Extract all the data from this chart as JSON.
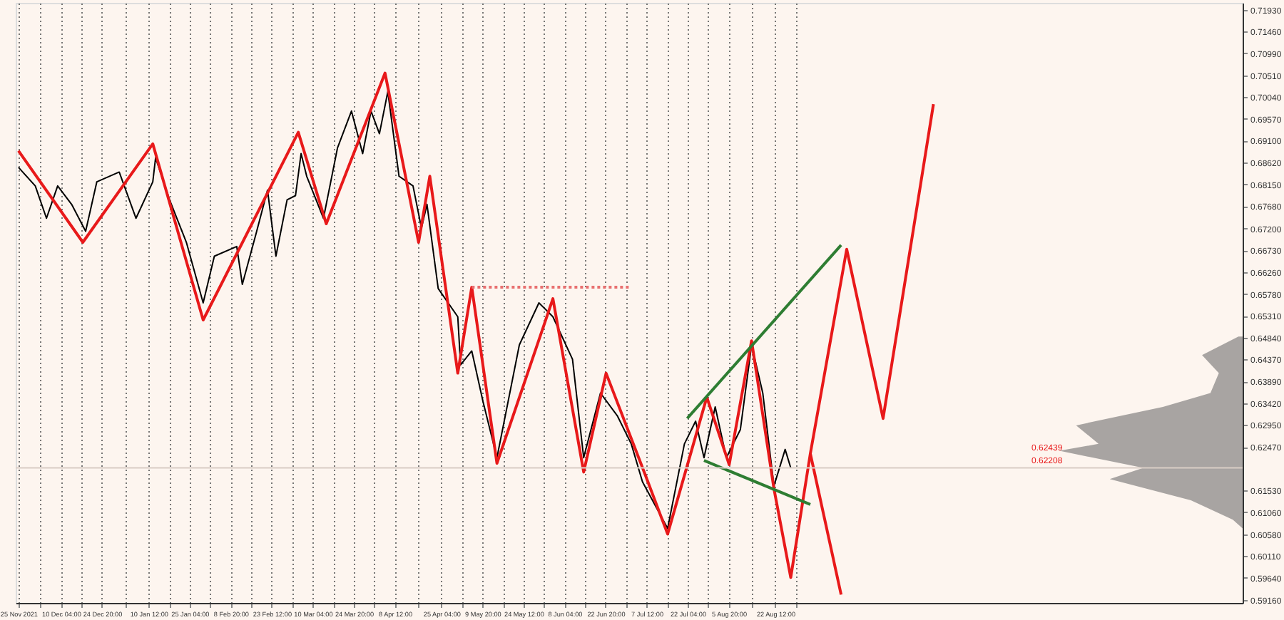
{
  "chart_data": {
    "type": "line",
    "xlim": [
      "2021-11-24",
      "2023-02-05T12:00"
    ],
    "ylim": [
      0.591,
      0.7208
    ],
    "xticks": [
      {
        "value": "2021-11-25",
        "label": "25 Nov 2021"
      },
      {
        "value": "2021-12-02T14:00",
        "label": null
      },
      {
        "value": "2021-12-10T04:00",
        "label": "10 Dec 04:00"
      },
      {
        "value": "2021-12-17T12:00",
        "label": null
      },
      {
        "value": "2021-12-24T20:00",
        "label": "24 Dec 20:00"
      },
      {
        "value": "2022-01-02T04:00",
        "label": null
      },
      {
        "value": "2022-01-10T12:00",
        "label": "10 Jan 12:00"
      },
      {
        "value": "2022-01-17T20:00",
        "label": null
      },
      {
        "value": "2022-01-25T04:00",
        "label": "25 Jan 04:00"
      },
      {
        "value": "2022-02-01T12:00",
        "label": null
      },
      {
        "value": "2022-02-08T20:00",
        "label": "8 Feb 20:00"
      },
      {
        "value": "2022-02-16T04:00",
        "label": null
      },
      {
        "value": "2022-02-23T12:00",
        "label": "23 Feb 12:00"
      },
      {
        "value": "2022-03-02T20:00",
        "label": null
      },
      {
        "value": "2022-03-10T04:00",
        "label": "10 Mar 04:00"
      },
      {
        "value": "2022-03-17T12:00",
        "label": null
      },
      {
        "value": "2022-03-24T20:00",
        "label": "24 Mar 20:00"
      },
      {
        "value": "2022-04-01T04:00",
        "label": null
      },
      {
        "value": "2022-04-08T12:00",
        "label": "8 Apr 12:00"
      },
      {
        "value": "2022-04-16T20:00",
        "label": null
      },
      {
        "value": "2022-04-25T04:00",
        "label": "25 Apr 04:00"
      },
      {
        "value": "2022-05-02T12:00",
        "label": null
      },
      {
        "value": "2022-05-09T20:00",
        "label": "9 May 20:00"
      },
      {
        "value": "2022-05-17T04:00",
        "label": null
      },
      {
        "value": "2022-05-24T12:00",
        "label": "24 May 12:00"
      },
      {
        "value": "2022-05-31T20:00",
        "label": null
      },
      {
        "value": "2022-06-08T04:00",
        "label": "8 Jun 04:00"
      },
      {
        "value": "2022-06-15T12:00",
        "label": null
      },
      {
        "value": "2022-06-22T20:00",
        "label": "22 Jun 20:00"
      },
      {
        "value": "2022-06-30T04:00",
        "label": null
      },
      {
        "value": "2022-07-07T12:00",
        "label": "7 Jul 12:00"
      },
      {
        "value": "2022-07-14T20:00",
        "label": null
      },
      {
        "value": "2022-07-22T04:00",
        "label": "22 Jul 04:00"
      },
      {
        "value": "2022-07-29T12:00",
        "label": null
      },
      {
        "value": "2022-08-05T20:00",
        "label": "5 Aug 20:00"
      },
      {
        "value": "2022-08-14T04:00",
        "label": null
      },
      {
        "value": "2022-08-22T12:00",
        "label": "22 Aug 12:00"
      },
      {
        "value": "2022-08-30",
        "label": null
      }
    ],
    "yticks": [
      {
        "value": 0.7193,
        "label": "0.71930"
      },
      {
        "value": 0.7146,
        "label": "0.71460"
      },
      {
        "value": 0.7099,
        "label": "0.70990"
      },
      {
        "value": 0.7051,
        "label": "0.70510"
      },
      {
        "value": 0.7004,
        "label": "0.70040"
      },
      {
        "value": 0.6957,
        "label": "0.69570"
      },
      {
        "value": 0.691,
        "label": "0.69100"
      },
      {
        "value": 0.6862,
        "label": "0.68620"
      },
      {
        "value": 0.6815,
        "label": "0.68150"
      },
      {
        "value": 0.6768,
        "label": "0.67680"
      },
      {
        "value": 0.672,
        "label": "0.67200"
      },
      {
        "value": 0.6673,
        "label": "0.66730"
      },
      {
        "value": 0.6626,
        "label": "0.66260"
      },
      {
        "value": 0.6578,
        "label": "0.65780"
      },
      {
        "value": 0.6531,
        "label": "0.65310"
      },
      {
        "value": 0.6484,
        "label": "0.64840"
      },
      {
        "value": 0.6437,
        "label": "0.64370"
      },
      {
        "value": 0.6389,
        "label": "0.63890"
      },
      {
        "value": 0.6342,
        "label": "0.63420"
      },
      {
        "value": 0.6295,
        "label": "0.62950"
      },
      {
        "value": 0.6247,
        "label": "0.62470"
      },
      {
        "value": 0.6153,
        "label": "0.61530"
      },
      {
        "value": 0.6106,
        "label": "0.61060"
      },
      {
        "value": 0.6058,
        "label": "0.60580"
      },
      {
        "value": 0.6011,
        "label": "0.60110"
      },
      {
        "value": 0.5964,
        "label": "0.59640"
      },
      {
        "value": 0.5916,
        "label": "0.59160"
      }
    ],
    "grid": "x",
    "series": [
      {
        "type": "area",
        "color": "#a8a4a2",
        "x": [
          "2023-02-05T12:00",
          "2023-02-04",
          "2023-01-22",
          "2023-01-28",
          "2023-01-25",
          "2023-01-08",
          "2022-12-08",
          "2022-12-16",
          "2022-12-02",
          "2023-01-01",
          "2022-12-20",
          "2023-01-18",
          "2023-02-02",
          "2023-02-05T12:00"
        ],
        "values": [
          0.6486,
          0.6486,
          0.6446,
          0.6407,
          0.6364,
          0.6334,
          0.6294,
          0.6254,
          0.6239,
          0.6202,
          0.6178,
          0.6132,
          0.609,
          0.6071
        ]
      },
      {
        "color": "#000000",
        "x": [
          "2021-11-25",
          "2021-12-01",
          "2021-12-05",
          "2021-12-09",
          "2021-12-14",
          "2021-12-19",
          "2021-12-23",
          "2021-12-31",
          "2022-01-06",
          "2022-01-12",
          "2022-01-13",
          "2022-01-18",
          "2022-01-24",
          "2022-01-30",
          "2022-02-03",
          "2022-02-11",
          "2022-02-13",
          "2022-02-18",
          "2022-02-22",
          "2022-02-25",
          "2022-03-01",
          "2022-03-04",
          "2022-03-06",
          "2022-03-08",
          "2022-03-14",
          "2022-03-19",
          "2022-03-24",
          "2022-03-28",
          "2022-03-31",
          "2022-04-03",
          "2022-04-06",
          "2022-04-10",
          "2022-04-15",
          "2022-04-18",
          "2022-04-20",
          "2022-04-24",
          "2022-05-01",
          "2022-05-02",
          "2022-05-06",
          "2022-05-10",
          "2022-05-15",
          "2022-05-23",
          "2022-05-30",
          "2022-06-04",
          "2022-06-11",
          "2022-06-15",
          "2022-06-21",
          "2022-06-27",
          "2022-07-02",
          "2022-07-06",
          "2022-07-15",
          "2022-07-21",
          "2022-07-25",
          "2022-07-28",
          "2022-08-01",
          "2022-08-05",
          "2022-08-10",
          "2022-08-14",
          "2022-08-18",
          "2022-08-22",
          "2022-08-26",
          "2022-08-28"
        ],
        "values": [
          0.6852,
          0.6812,
          0.6742,
          0.6812,
          0.6772,
          0.6714,
          0.6821,
          0.6842,
          0.6742,
          0.6821,
          0.6873,
          0.6782,
          0.669,
          0.6559,
          0.666,
          0.6681,
          0.6599,
          0.6711,
          0.6803,
          0.666,
          0.6782,
          0.6791,
          0.6882,
          0.6833,
          0.6742,
          0.6894,
          0.6974,
          0.6882,
          0.6974,
          0.6925,
          0.7016,
          0.6833,
          0.6812,
          0.6721,
          0.6772,
          0.659,
          0.6529,
          0.6425,
          0.6455,
          0.6346,
          0.6224,
          0.6468,
          0.6559,
          0.6529,
          0.6437,
          0.6224,
          0.6364,
          0.6315,
          0.6254,
          0.6172,
          0.6071,
          0.6254,
          0.6303,
          0.6224,
          0.6334,
          0.6224,
          0.6285,
          0.6468,
          0.6364,
          0.6163,
          0.6242,
          0.6202
        ]
      },
      {
        "color": "#e8191a",
        "x": [
          "2021-11-25",
          "2021-12-18",
          "2022-01-12",
          "2022-01-30",
          "2022-03-05",
          "2022-03-15",
          "2022-04-05",
          "2022-04-17",
          "2022-04-21",
          "2022-05-01",
          "2022-05-06",
          "2022-05-15",
          "2022-06-04",
          "2022-06-15",
          "2022-06-23",
          "2022-07-07",
          "2022-07-15",
          "2022-07-29",
          "2022-08-06",
          "2022-08-14",
          "2022-08-22",
          "2022-08-28",
          "2022-09-04",
          "2022-09-17",
          "2022-09-30",
          "2022-10-18"
        ],
        "values": [
          0.6888,
          0.669,
          0.6903,
          0.6522,
          0.6928,
          0.673,
          0.7056,
          0.669,
          0.6833,
          0.6407,
          0.6593,
          0.6212,
          0.6568,
          0.6193,
          0.6407,
          0.6187,
          0.6059,
          0.6355,
          0.6209,
          0.6477,
          0.6157,
          0.5965,
          0.6233,
          0.6675,
          0.6309,
          0.6989
        ]
      },
      {
        "color": "#e8191a",
        "x": [
          "2022-09-04",
          "2022-09-15"
        ],
        "values": [
          0.6233,
          0.5928
        ]
      },
      {
        "color": "#2e7d32",
        "x": [
          "2022-07-22",
          "2022-09-15"
        ],
        "values": [
          0.6309,
          0.6684
        ]
      },
      {
        "color": "#2e7d32",
        "x": [
          "2022-07-28",
          "2022-09-04"
        ],
        "values": [
          0.6218,
          0.6123
        ]
      },
      {
        "color": "#e87070",
        "line_style": "dotted",
        "x": [
          "2022-05-06",
          "2022-07-02"
        ],
        "values": [
          0.6593,
          0.6593
        ]
      }
    ],
    "ref_lines": [
      {
        "axis": "y",
        "value": 0.6202,
        "color": "#d9cdc6"
      }
    ],
    "annotations": [
      "0.62439",
      "0.62208"
    ]
  }
}
